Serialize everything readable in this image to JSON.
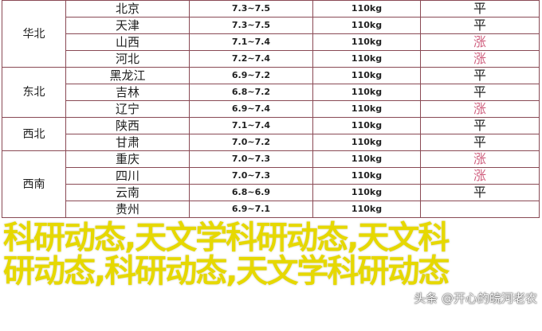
{
  "colors": {
    "border": "#8a4a55",
    "up": "#d0607f",
    "overlay": "#ffff1a"
  },
  "groups": [
    {
      "region": "华北",
      "rows": [
        {
          "province": "北京",
          "price": "7.3~7.5",
          "weight": "110kg",
          "trend": "平",
          "up": false
        },
        {
          "province": "天津",
          "price": "7.3~7.5",
          "weight": "110kg",
          "trend": "平",
          "up": false
        },
        {
          "province": "山西",
          "price": "7.1~7.4",
          "weight": "110kg",
          "trend": "涨",
          "up": true
        },
        {
          "province": "河北",
          "price": "7.2~7.4",
          "weight": "110kg",
          "trend": "涨",
          "up": true
        }
      ]
    },
    {
      "region": "东北",
      "rows": [
        {
          "province": "黑龙江",
          "price": "6.9~7.2",
          "weight": "110kg",
          "trend": "平",
          "up": false
        },
        {
          "province": "吉林",
          "price": "6.8~7.2",
          "weight": "110kg",
          "trend": "平",
          "up": false
        },
        {
          "province": "辽宁",
          "price": "6.9~7.4",
          "weight": "110kg",
          "trend": "涨",
          "up": true
        }
      ]
    },
    {
      "region": "西北",
      "rows": [
        {
          "province": "陕西",
          "price": "7.1~7.4",
          "weight": "110kg",
          "trend": "平",
          "up": false
        },
        {
          "province": "甘肃",
          "price": "7.0~7.2",
          "weight": "110kg",
          "trend": "平",
          "up": false
        }
      ]
    },
    {
      "region": "西南",
      "rows": [
        {
          "province": "重庆",
          "price": "7.0~7.3",
          "weight": "110kg",
          "trend": "涨",
          "up": true
        },
        {
          "province": "四川",
          "price": "7.0~7.3",
          "weight": "110kg",
          "trend": "涨",
          "up": true
        },
        {
          "province": "云南",
          "price": "6.8~6.9",
          "weight": "110kg",
          "trend": "平",
          "up": false
        },
        {
          "province": "贵州",
          "price": "6.9~7.1",
          "weight": "110kg",
          "trend": "",
          "up": false
        }
      ]
    }
  ],
  "overlay": {
    "line1": "科研动态,天文学科研动态,天文科",
    "line2": "研动态,科研动态,天文学科研动态"
  },
  "watermark": "头条 @开心的皖河老农"
}
